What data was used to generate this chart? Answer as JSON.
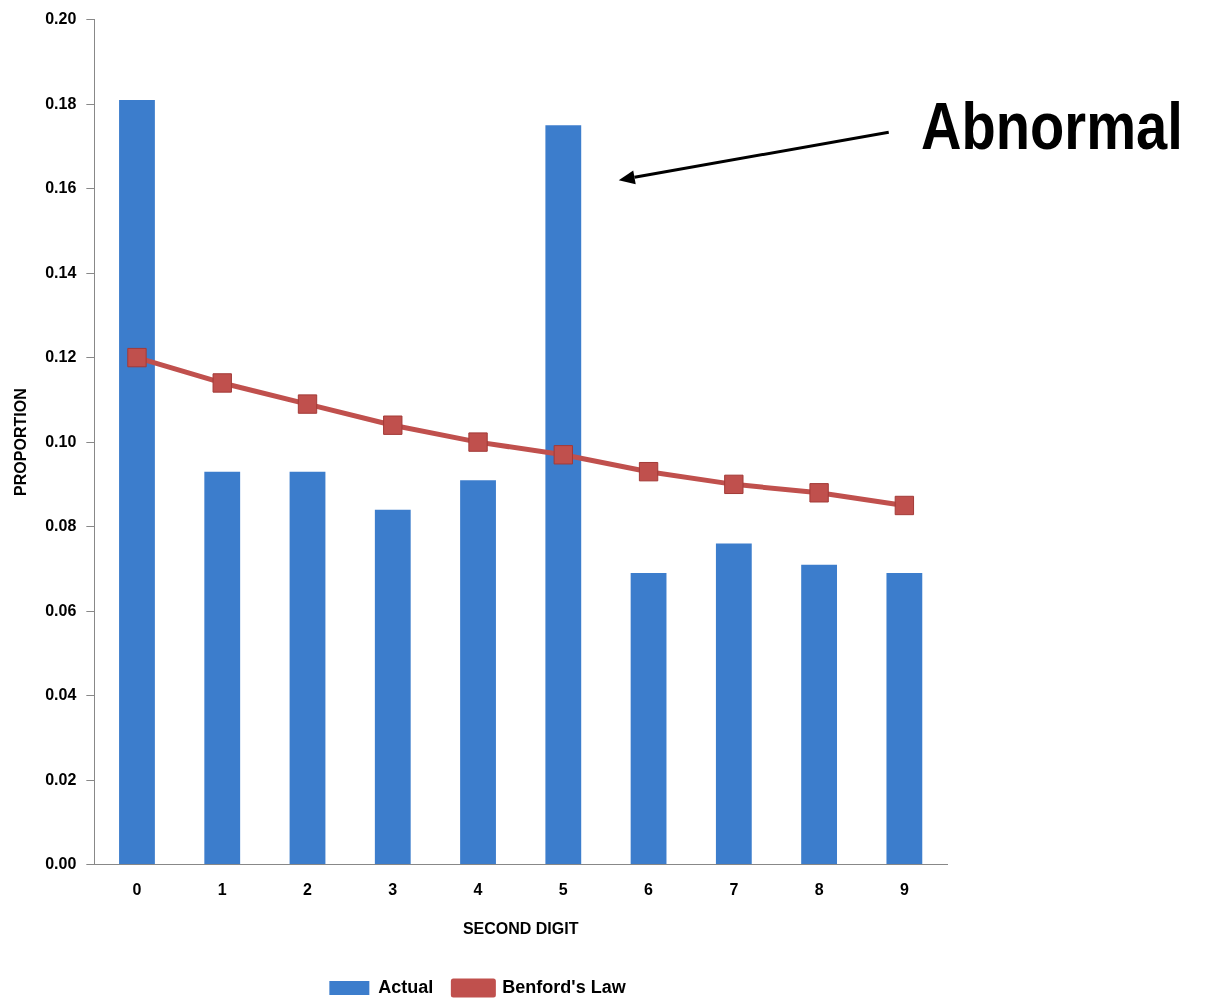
{
  "chart_data": {
    "type": "bar",
    "xlabel": "SECOND DIGIT",
    "ylabel": "PROPORTION",
    "categories": [
      "0",
      "1",
      "2",
      "3",
      "4",
      "5",
      "6",
      "7",
      "8",
      "9"
    ],
    "series": [
      {
        "name": "Actual",
        "color": "#3c7dcc",
        "values": [
          0.181,
          0.093,
          0.093,
          0.084,
          0.091,
          0.175,
          0.069,
          0.076,
          0.071,
          0.069
        ]
      },
      {
        "name": "Benford's Law",
        "type": "line",
        "color": "#c0504d",
        "marker": "square",
        "values": [
          0.12,
          0.114,
          0.109,
          0.104,
          0.1,
          0.097,
          0.093,
          0.09,
          0.088,
          0.085
        ]
      }
    ],
    "ylim": [
      0,
      0.2
    ],
    "yticks": [
      {
        "value": 0,
        "label": "0.00"
      },
      {
        "value": 0.02,
        "label": "0.02"
      },
      {
        "value": 0.04,
        "label": "0.04"
      },
      {
        "value": 0.06,
        "label": "0.06"
      },
      {
        "value": 0.08,
        "label": "0.08"
      },
      {
        "value": 0.1,
        "label": "0.10"
      },
      {
        "value": 0.12,
        "label": "0.12"
      },
      {
        "value": 0.14,
        "label": "0.14"
      },
      {
        "value": 0.16,
        "label": "0.16"
      },
      {
        "value": 0.18,
        "label": "0.18"
      },
      {
        "value": 0.2,
        "label": "0.20"
      }
    ],
    "grid": false,
    "legend": "bottom",
    "annotations": [
      "Abnormal"
    ]
  }
}
